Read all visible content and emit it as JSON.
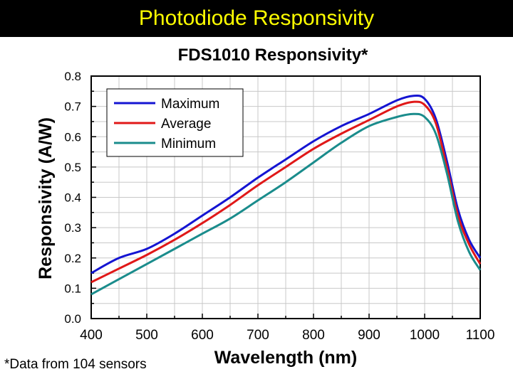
{
  "slide": {
    "title": "Photodiode Responsivity",
    "footnote": "*Data from 104 sensors"
  },
  "chart_data": {
    "type": "line",
    "title": "FDS1010 Responsivity*",
    "xlabel": "Wavelength (nm)",
    "ylabel": "Responsivity (A/W)",
    "xlim": [
      400,
      1100
    ],
    "ylim": [
      0.0,
      0.8
    ],
    "xticks": [
      "400",
      "500",
      "600",
      "700",
      "800",
      "900",
      "1000",
      "1100"
    ],
    "yticks": [
      "0.0",
      "0.1",
      "0.2",
      "0.3",
      "0.4",
      "0.5",
      "0.6",
      "0.7",
      "0.8"
    ],
    "grid": true,
    "legend_position": "top-left",
    "series": [
      {
        "name": "Maximum",
        "color": "#1414d2",
        "x": [
          400,
          450,
          500,
          550,
          600,
          650,
          700,
          750,
          800,
          850,
          900,
          950,
          980,
          1000,
          1020,
          1040,
          1060,
          1080,
          1100
        ],
        "y": [
          0.15,
          0.2,
          0.23,
          0.28,
          0.34,
          0.4,
          0.465,
          0.525,
          0.585,
          0.635,
          0.675,
          0.72,
          0.735,
          0.725,
          0.66,
          0.52,
          0.36,
          0.26,
          0.2
        ]
      },
      {
        "name": "Average",
        "color": "#e01818",
        "x": [
          400,
          450,
          500,
          550,
          600,
          650,
          700,
          750,
          800,
          850,
          900,
          950,
          980,
          1000,
          1020,
          1040,
          1060,
          1080,
          1100
        ],
        "y": [
          0.12,
          0.165,
          0.21,
          0.26,
          0.315,
          0.375,
          0.44,
          0.5,
          0.56,
          0.61,
          0.655,
          0.7,
          0.715,
          0.705,
          0.645,
          0.5,
          0.34,
          0.245,
          0.18
        ]
      },
      {
        "name": "Minimum",
        "color": "#1a8c8c",
        "x": [
          400,
          450,
          500,
          550,
          600,
          650,
          700,
          750,
          800,
          850,
          900,
          950,
          980,
          1000,
          1020,
          1040,
          1060,
          1080,
          1100
        ],
        "y": [
          0.08,
          0.13,
          0.18,
          0.23,
          0.28,
          0.33,
          0.39,
          0.45,
          0.515,
          0.58,
          0.635,
          0.665,
          0.675,
          0.665,
          0.61,
          0.48,
          0.32,
          0.22,
          0.16
        ]
      }
    ]
  }
}
